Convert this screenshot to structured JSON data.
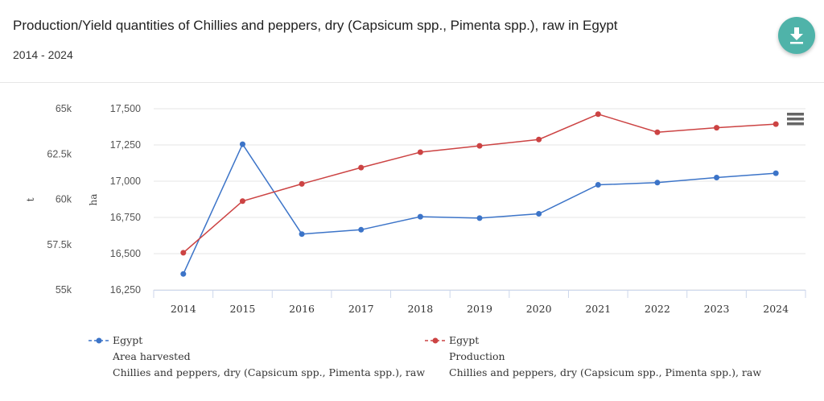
{
  "header": {
    "title": "Production/Yield quantities of Chillies and peppers, dry (Capsicum spp., Pimenta spp.), raw in Egypt",
    "subtitle": "2014 - 2024"
  },
  "icons": {
    "download": "download-icon",
    "menu": "hamburger-menu-icon"
  },
  "colors": {
    "area_series": "#3c74c8",
    "production_series": "#cc4343",
    "download_button": "#4fb3a9"
  },
  "chart_data": {
    "type": "line",
    "x": [
      2014,
      2015,
      2016,
      2017,
      2018,
      2019,
      2020,
      2021,
      2022,
      2023,
      2024
    ],
    "xlim": [
      2014,
      2024
    ],
    "grid": true,
    "legend_position": "bottom",
    "axes": {
      "left_outer": {
        "label": "t",
        "ticks": [
          "55k",
          "57.5k",
          "60k",
          "62.5k",
          "65k"
        ],
        "ylim": [
          55000,
          65000
        ]
      },
      "left_inner": {
        "label": "ha",
        "ticks": [
          "16,250",
          "16,500",
          "16,750",
          "17,000",
          "17,250",
          "17,500"
        ],
        "ylim": [
          16250,
          17500
        ]
      }
    },
    "series": [
      {
        "name": "Egypt",
        "element": "Area harvested",
        "item": "Chillies and peppers, dry (Capsicum spp., Pimenta spp.), raw",
        "axis": "left_inner",
        "unit": "ha",
        "color": "#3c74c8",
        "values": [
          16360,
          17255,
          16635,
          16665,
          16755,
          16745,
          16775,
          16975,
          16990,
          17025,
          17055
        ]
      },
      {
        "name": "Egypt",
        "element": "Production",
        "item": "Chillies and peppers, dry (Capsicum spp., Pimenta spp.), raw",
        "axis": "left_outer",
        "unit": "t",
        "color": "#cc4343",
        "values": [
          57050,
          59900,
          60850,
          61750,
          62600,
          62950,
          63300,
          64700,
          63700,
          63950,
          64150
        ]
      }
    ]
  }
}
